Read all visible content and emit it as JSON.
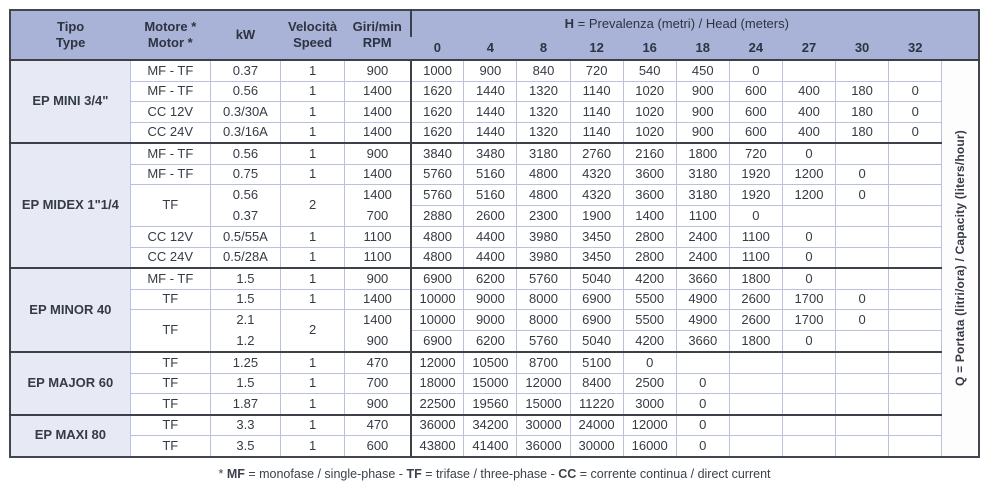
{
  "table": {
    "header": {
      "tipo": {
        "line1": "Tipo",
        "line2": "Type"
      },
      "motore": {
        "line1": "Motore *",
        "line2": "Motor *"
      },
      "kw": "kW",
      "velocita": {
        "line1": "Velocità",
        "line2": "Speed"
      },
      "giri": {
        "line1": "Giri/min",
        "line2": "RPM"
      },
      "head_title": {
        "prefix": "H",
        "rest": " = Prevalenza (metri) / Head (meters)"
      },
      "head_columns": [
        "0",
        "4",
        "8",
        "12",
        "16",
        "18",
        "24",
        "27",
        "30",
        "32"
      ]
    },
    "q_label": {
      "prefix": "Q",
      "rest": " = Portata (litri/ora) / Capacity (liters/hour)"
    },
    "groups": [
      {
        "name": "EP MINI 3/4\"",
        "rows": [
          {
            "motor": "MF - TF",
            "speed": "1",
            "kw_lines": [
              "0.37"
            ],
            "rpm_lines": [
              "900"
            ],
            "q_rows": [
              [
                "1000",
                "900",
                "840",
                "720",
                "540",
                "450",
                "0",
                "",
                "",
                ""
              ]
            ]
          },
          {
            "motor": "MF - TF",
            "speed": "1",
            "kw_lines": [
              "0.56"
            ],
            "rpm_lines": [
              "1400"
            ],
            "q_rows": [
              [
                "1620",
                "1440",
                "1320",
                "1140",
                "1020",
                "900",
                "600",
                "400",
                "180",
                "0"
              ]
            ]
          },
          {
            "motor": "CC 12V",
            "speed": "1",
            "kw_lines": [
              "0.3/30A"
            ],
            "rpm_lines": [
              "1400"
            ],
            "q_rows": [
              [
                "1620",
                "1440",
                "1320",
                "1140",
                "1020",
                "900",
                "600",
                "400",
                "180",
                "0"
              ]
            ]
          },
          {
            "motor": "CC 24V",
            "speed": "1",
            "kw_lines": [
              "0.3/16A"
            ],
            "rpm_lines": [
              "1400"
            ],
            "q_rows": [
              [
                "1620",
                "1440",
                "1320",
                "1140",
                "1020",
                "900",
                "600",
                "400",
                "180",
                "0"
              ]
            ]
          }
        ]
      },
      {
        "name": "EP MIDEX 1\"1/4",
        "rows": [
          {
            "motor": "MF - TF",
            "speed": "1",
            "kw_lines": [
              "0.56"
            ],
            "rpm_lines": [
              "900"
            ],
            "q_rows": [
              [
                "3840",
                "3480",
                "3180",
                "2760",
                "2160",
                "1800",
                "720",
                "0",
                "",
                ""
              ]
            ]
          },
          {
            "motor": "MF - TF",
            "speed": "1",
            "kw_lines": [
              "0.75"
            ],
            "rpm_lines": [
              "1400"
            ],
            "q_rows": [
              [
                "5760",
                "5160",
                "4800",
                "4320",
                "3600",
                "3180",
                "1920",
                "1200",
                "0",
                ""
              ]
            ]
          },
          {
            "motor": "TF",
            "speed": "2",
            "kw_lines": [
              "0.56",
              "0.37"
            ],
            "rpm_lines": [
              "1400",
              "700"
            ],
            "q_rows": [
              [
                "5760",
                "5160",
                "4800",
                "4320",
                "3600",
                "3180",
                "1920",
                "1200",
                "0",
                ""
              ],
              [
                "2880",
                "2600",
                "2300",
                "1900",
                "1400",
                "1100",
                "0",
                "",
                "",
                ""
              ]
            ]
          },
          {
            "motor": "CC 12V",
            "speed": "1",
            "kw_lines": [
              "0.5/55A"
            ],
            "rpm_lines": [
              "1100"
            ],
            "q_rows": [
              [
                "4800",
                "4400",
                "3980",
                "3450",
                "2800",
                "2400",
                "1100",
                "0",
                "",
                ""
              ]
            ]
          },
          {
            "motor": "CC 24V",
            "speed": "1",
            "kw_lines": [
              "0.5/28A"
            ],
            "rpm_lines": [
              "1100"
            ],
            "q_rows": [
              [
                "4800",
                "4400",
                "3980",
                "3450",
                "2800",
                "2400",
                "1100",
                "0",
                "",
                ""
              ]
            ]
          }
        ]
      },
      {
        "name": "EP MINOR 40",
        "rows": [
          {
            "motor": "MF - TF",
            "speed": "1",
            "kw_lines": [
              "1.5"
            ],
            "rpm_lines": [
              "900"
            ],
            "q_rows": [
              [
                "6900",
                "6200",
                "5760",
                "5040",
                "4200",
                "3660",
                "1800",
                "0",
                "",
                ""
              ]
            ]
          },
          {
            "motor": "TF",
            "speed": "1",
            "kw_lines": [
              "1.5"
            ],
            "rpm_lines": [
              "1400"
            ],
            "q_rows": [
              [
                "10000",
                "9000",
                "8000",
                "6900",
                "5500",
                "4900",
                "2600",
                "1700",
                "0",
                ""
              ]
            ]
          },
          {
            "motor": "TF",
            "speed": "2",
            "kw_lines": [
              "2.1",
              "1.2"
            ],
            "rpm_lines": [
              "1400",
              "900"
            ],
            "q_rows": [
              [
                "10000",
                "9000",
                "8000",
                "6900",
                "5500",
                "4900",
                "2600",
                "1700",
                "0",
                ""
              ],
              [
                "6900",
                "6200",
                "5760",
                "5040",
                "4200",
                "3660",
                "1800",
                "0",
                "",
                ""
              ]
            ]
          }
        ]
      },
      {
        "name": "EP MAJOR 60",
        "rows": [
          {
            "motor": "TF",
            "speed": "1",
            "kw_lines": [
              "1.25"
            ],
            "rpm_lines": [
              "470"
            ],
            "q_rows": [
              [
                "12000",
                "10500",
                "8700",
                "5100",
                "0",
                "",
                "",
                "",
                "",
                ""
              ]
            ]
          },
          {
            "motor": "TF",
            "speed": "1",
            "kw_lines": [
              "1.5"
            ],
            "rpm_lines": [
              "700"
            ],
            "q_rows": [
              [
                "18000",
                "15000",
                "12000",
                "8400",
                "2500",
                "0",
                "",
                "",
                "",
                ""
              ]
            ]
          },
          {
            "motor": "TF",
            "speed": "1",
            "kw_lines": [
              "1.87"
            ],
            "rpm_lines": [
              "900"
            ],
            "q_rows": [
              [
                "22500",
                "19560",
                "15000",
                "11220",
                "3000",
                "0",
                "",
                "",
                "",
                ""
              ]
            ]
          }
        ]
      },
      {
        "name": "EP MAXI 80",
        "rows": [
          {
            "motor": "TF",
            "speed": "1",
            "kw_lines": [
              "3.3"
            ],
            "rpm_lines": [
              "470"
            ],
            "q_rows": [
              [
                "36000",
                "34200",
                "30000",
                "24000",
                "12000",
                "0",
                "",
                "",
                "",
                ""
              ]
            ]
          },
          {
            "motor": "TF",
            "speed": "1",
            "kw_lines": [
              "3.5"
            ],
            "rpm_lines": [
              "600"
            ],
            "q_rows": [
              [
                "43800",
                "41400",
                "36000",
                "30000",
                "16000",
                "0",
                "",
                "",
                "",
                ""
              ]
            ]
          }
        ]
      }
    ]
  },
  "footnote": {
    "segments": [
      {
        "text": "* ",
        "bold": false
      },
      {
        "text": "MF",
        "bold": true
      },
      {
        "text": " = monofase / single-phase - ",
        "bold": false
      },
      {
        "text": "TF",
        "bold": true
      },
      {
        "text": " = trifase / three-phase - ",
        "bold": false
      },
      {
        "text": "CC",
        "bold": true
      },
      {
        "text": " = corrente continua / direct current",
        "bold": false
      }
    ]
  },
  "colors": {
    "header_background": "#a9b3d8",
    "type_column_background": "#e7e9f4",
    "light_grid_line": "#b9c1dc",
    "dark_grid_line": "#3b4049",
    "text": "#353b45"
  }
}
